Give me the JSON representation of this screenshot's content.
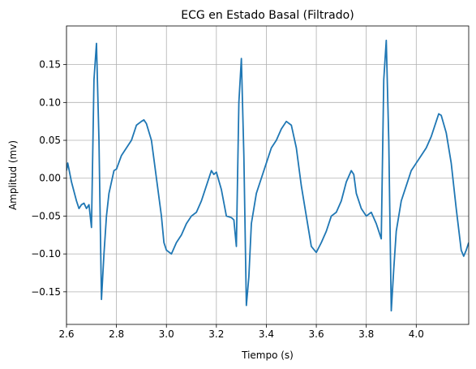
{
  "chart_data": {
    "type": "line",
    "title": "ECG en Estado Basal (Filtrado)",
    "x_label": "Tiempo (s)",
    "y_label": "Amplitud (mv)",
    "xlim": [
      2.6,
      4.21
    ],
    "ylim": [
      -0.193,
      0.201
    ],
    "xticks": [
      2.6,
      2.8,
      {
        "value": 3.0,
        "label": "3.0"
      },
      3.2,
      3.4,
      3.6,
      3.8,
      {
        "value": 4.0,
        "label": "4.0"
      }
    ],
    "yticks": [
      {
        "value": -0.15,
        "label": "−0.15"
      },
      {
        "value": -0.1,
        "label": "−0.10"
      },
      {
        "value": -0.05,
        "label": "−0.05"
      },
      {
        "value": 0,
        "label": "0.00"
      },
      0.05,
      {
        "value": 0.1,
        "label": "0.10"
      },
      0.15
    ],
    "grid": true,
    "x": [
      2.6,
      2.605,
      2.62,
      2.64,
      2.65,
      2.66,
      2.67,
      2.68,
      2.69,
      2.7,
      2.71,
      2.72,
      2.73,
      2.74,
      2.75,
      2.76,
      2.77,
      2.78,
      2.79,
      2.8,
      2.82,
      2.84,
      2.86,
      2.88,
      2.9,
      2.91,
      2.92,
      2.94,
      2.96,
      2.98,
      2.99,
      3.0,
      3.02,
      3.04,
      3.06,
      3.08,
      3.1,
      3.12,
      3.14,
      3.16,
      3.18,
      3.19,
      3.2,
      3.22,
      3.24,
      3.26,
      3.27,
      3.28,
      3.29,
      3.3,
      3.31,
      3.32,
      3.33,
      3.34,
      3.36,
      3.38,
      3.4,
      3.42,
      3.44,
      3.46,
      3.48,
      3.5,
      3.52,
      3.54,
      3.56,
      3.58,
      3.6,
      3.62,
      3.64,
      3.66,
      3.68,
      3.7,
      3.72,
      3.74,
      3.75,
      3.76,
      3.78,
      3.8,
      3.82,
      3.84,
      3.86,
      3.87,
      3.88,
      3.89,
      3.9,
      3.91,
      3.92,
      3.94,
      3.96,
      3.98,
      4.0,
      4.02,
      4.04,
      4.06,
      4.08,
      4.09,
      4.1,
      4.12,
      4.14,
      4.16,
      4.18,
      4.19,
      4.2,
      4.21
    ],
    "series": [
      {
        "color": "#1f77b4",
        "values": [
          0.01,
          0.02,
          -0.005,
          -0.03,
          -0.04,
          -0.035,
          -0.033,
          -0.04,
          -0.035,
          -0.065,
          0.13,
          0.178,
          0.05,
          -0.16,
          -0.1,
          -0.05,
          -0.02,
          -0.005,
          0.01,
          0.012,
          0.03,
          0.04,
          0.05,
          0.07,
          0.075,
          0.077,
          0.072,
          0.05,
          0.0,
          -0.05,
          -0.085,
          -0.095,
          -0.1,
          -0.085,
          -0.075,
          -0.06,
          -0.05,
          -0.045,
          -0.03,
          -0.01,
          0.01,
          0.005,
          0.008,
          -0.015,
          -0.05,
          -0.052,
          -0.055,
          -0.09,
          0.1,
          0.158,
          0.03,
          -0.168,
          -0.13,
          -0.06,
          -0.02,
          0.0,
          0.02,
          0.04,
          0.05,
          0.065,
          0.075,
          0.07,
          0.04,
          -0.01,
          -0.05,
          -0.09,
          -0.098,
          -0.085,
          -0.07,
          -0.05,
          -0.045,
          -0.03,
          -0.005,
          0.01,
          0.005,
          -0.02,
          -0.04,
          -0.05,
          -0.045,
          -0.06,
          -0.08,
          0.13,
          0.182,
          0.05,
          -0.175,
          -0.12,
          -0.07,
          -0.03,
          -0.01,
          0.01,
          0.02,
          0.03,
          0.04,
          0.055,
          0.075,
          0.085,
          0.083,
          0.06,
          0.02,
          -0.04,
          -0.095,
          -0.103,
          -0.095,
          -0.085
        ]
      }
    ]
  }
}
